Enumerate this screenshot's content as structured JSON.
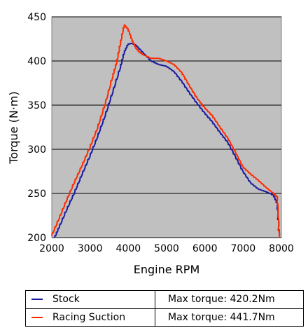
{
  "chart_data": {
    "type": "line",
    "title": "",
    "xlabel": "Engine RPM",
    "ylabel": "Torque (N·m)",
    "xlim": [
      2000,
      8000
    ],
    "ylim": [
      200,
      450
    ],
    "xticks": [
      2000,
      3000,
      4000,
      5000,
      6000,
      7000,
      8000
    ],
    "yticks": [
      200,
      250,
      300,
      350,
      400,
      450
    ],
    "grid": "horizontal",
    "background": "#c0c0c0",
    "legend_position": "below",
    "series": [
      {
        "name": "Stock",
        "color": "#1a1aa0",
        "annotation": "Max torque: 420.2Nm",
        "x": [
          2080,
          2200,
          2400,
          2600,
          2800,
          3000,
          3200,
          3400,
          3600,
          3800,
          3900,
          4000,
          4100,
          4200,
          4400,
          4600,
          4800,
          5000,
          5200,
          5400,
          5600,
          5800,
          6000,
          6200,
          6400,
          6600,
          6800,
          7000,
          7200,
          7400,
          7600,
          7800,
          7900,
          7950
        ],
        "y": [
          200,
          212,
          232,
          251,
          272,
          292,
          314,
          338,
          365,
          393,
          410,
          419,
          420,
          418,
          409,
          400,
          396,
          394,
          388,
          377,
          364,
          352,
          341,
          331,
          319,
          308,
          292,
          275,
          262,
          255,
          252,
          248,
          238,
          203
        ]
      },
      {
        "name": "Racing Suction",
        "color": "#ff2a00",
        "annotation": "Max torque: 441.7Nm",
        "x": [
          2000,
          2200,
          2400,
          2600,
          2800,
          3000,
          3200,
          3400,
          3600,
          3700,
          3800,
          3900,
          4000,
          4100,
          4200,
          4300,
          4400,
          4600,
          4800,
          5000,
          5200,
          5400,
          5600,
          5800,
          6000,
          6200,
          6400,
          6600,
          6800,
          7000,
          7200,
          7400,
          7600,
          7800,
          7900,
          7950
        ],
        "y": [
          202,
          222,
          243,
          263,
          282,
          302,
          324,
          351,
          383,
          398,
          420,
          441,
          436,
          424,
          415,
          410,
          407,
          403,
          403,
          400,
          396,
          387,
          372,
          358,
          347,
          338,
          325,
          313,
          297,
          280,
          272,
          265,
          257,
          250,
          246,
          200
        ]
      }
    ]
  }
}
